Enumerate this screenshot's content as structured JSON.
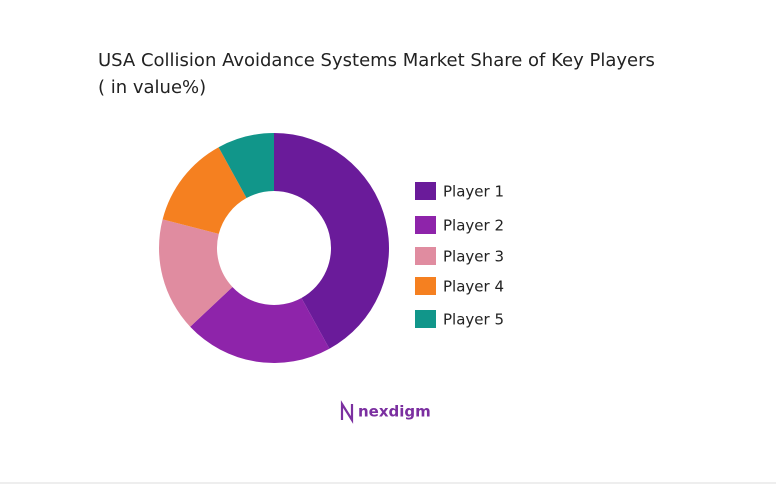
{
  "chart_data": {
    "type": "donut",
    "title": "USA Collision Avoidance Systems Market Share of Key Players",
    "subtitle": "( in value%)",
    "categories": [
      "Player 1",
      "Player 2",
      "Player 3",
      "Player 4",
      "Player 5"
    ],
    "values": [
      42,
      21,
      16,
      13,
      8
    ],
    "colors": [
      "#6a1b9a",
      "#8e24aa",
      "#e08ca0",
      "#f58020",
      "#11968a"
    ],
    "legend": "right"
  },
  "logo": "nexdigm"
}
